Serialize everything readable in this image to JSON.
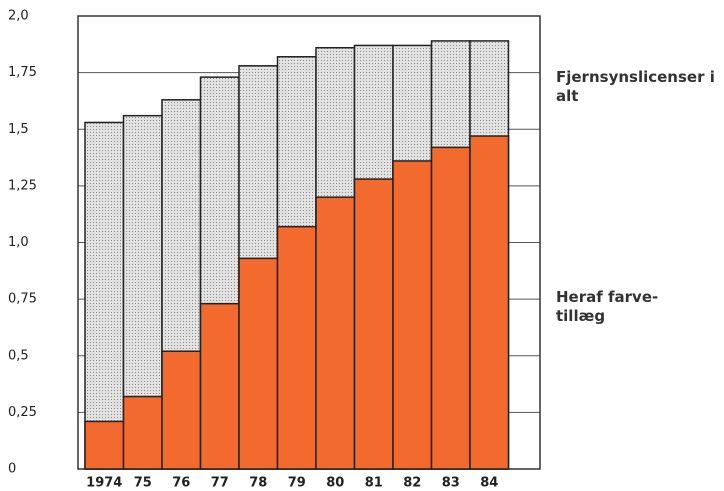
{
  "chart_data": {
    "type": "bar",
    "categories": [
      "1974",
      "75",
      "76",
      "77",
      "78",
      "79",
      "80",
      "81",
      "82",
      "83",
      "84"
    ],
    "series": [
      {
        "name": "Fjernsynslicenser i alt",
        "color": "#d4d4d4",
        "values": [
          1.53,
          1.56,
          1.63,
          1.73,
          1.78,
          1.82,
          1.86,
          1.87,
          1.87,
          1.89,
          1.89
        ]
      },
      {
        "name": "Heraf farve-tillæg",
        "color": "#f26a2e",
        "values": [
          0.21,
          0.32,
          0.52,
          0.73,
          0.93,
          1.07,
          1.2,
          1.28,
          1.36,
          1.42,
          1.47
        ]
      }
    ],
    "ylim": [
      0,
      2
    ],
    "yticks": [
      0,
      {
        "value": 0.25,
        "label": "0,25"
      },
      {
        "value": 0.5,
        "label": "0,5"
      },
      {
        "value": 0.75,
        "label": "0,75"
      },
      {
        "value": 1,
        "label": "1,0"
      },
      {
        "value": 1.25,
        "label": "1,25"
      },
      {
        "value": 1.5,
        "label": "1,5"
      },
      {
        "value": 1.75,
        "label": "1,75"
      },
      {
        "value": 2,
        "label": "2,0"
      }
    ],
    "grid": true
  }
}
